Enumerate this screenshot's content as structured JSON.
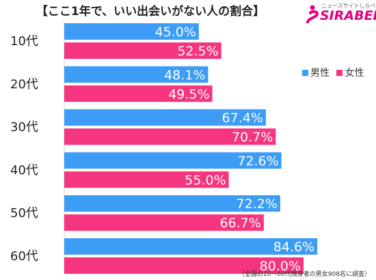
{
  "title": "【ここ1年で、いい出会いがない人の割合】",
  "logo": {
    "small_text": "ニュースサイトしらべぇ",
    "main_text": "SIRABEE"
  },
  "legend": [
    {
      "label": "男性",
      "color": "#3d9cf5"
    },
    {
      "label": "女性",
      "color": "#f5357f"
    }
  ],
  "footnote": "（全国の10～60代独身者の男女908名に調査）",
  "chart_data": {
    "type": "bar",
    "orientation": "horizontal",
    "categories": [
      "10代",
      "20代",
      "30代",
      "40代",
      "50代",
      "60代"
    ],
    "series": [
      {
        "name": "男性",
        "color": "#3d9cf5",
        "values": [
          45.0,
          48.1,
          67.4,
          72.6,
          72.2,
          84.6
        ],
        "labels": [
          "45.0%",
          "48.1%",
          "67.4%",
          "72.6%",
          "72.2%",
          "84.6%"
        ]
      },
      {
        "name": "女性",
        "color": "#f5357f",
        "values": [
          52.5,
          49.5,
          70.7,
          55.0,
          66.7,
          80.0
        ],
        "labels": [
          "52.5%",
          "49.5%",
          "70.7%",
          "55.0%",
          "66.7%",
          "80.0%"
        ]
      }
    ],
    "xlim": [
      0,
      100
    ],
    "grid": false,
    "legend_position": "right"
  }
}
